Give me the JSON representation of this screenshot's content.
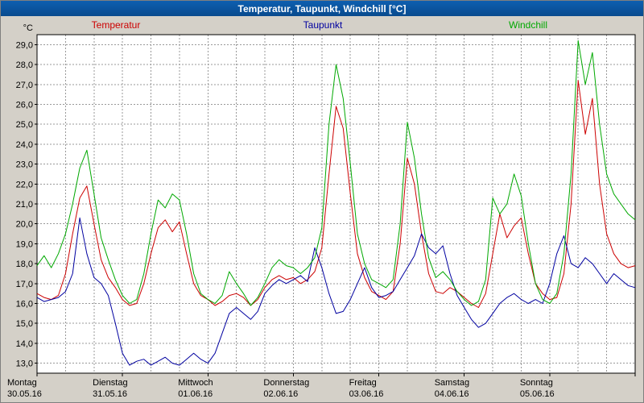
{
  "window": {
    "title": "Temperatur, Taupunkt, Windchill [°C]"
  },
  "chart_data": {
    "type": "line",
    "title": "Temperatur, Taupunkt, Windchill [°C]",
    "ylabel": "°C",
    "xlabel": "",
    "ylim": [
      12.5,
      29.5
    ],
    "y_ticks": [
      29,
      28,
      27,
      26,
      25,
      24,
      23,
      22,
      21,
      20,
      19,
      18,
      17,
      16,
      15,
      14,
      13
    ],
    "grid": {
      "horizontal_interval_deg": 1,
      "vertical_interval_hours": 8,
      "style": "dashed",
      "color": "#999999"
    },
    "legend_position": "top",
    "x_axis": {
      "hours_per_day": 24,
      "days": [
        {
          "name": "Montag",
          "date": "30.05.16"
        },
        {
          "name": "Dienstag",
          "date": "31.05.16"
        },
        {
          "name": "Mittwoch",
          "date": "01.06.16"
        },
        {
          "name": "Donnerstag",
          "date": "02.06.16"
        },
        {
          "name": "Freitag",
          "date": "03.06.16"
        },
        {
          "name": "Samstag",
          "date": "04.06.16"
        },
        {
          "name": "Sonntag",
          "date": "05.06.16"
        }
      ]
    },
    "x_step_hours": 2,
    "series": [
      {
        "name": "Temperatur",
        "color": "#cc0000",
        "values": [
          16.5,
          16.3,
          16.2,
          16.4,
          17.5,
          19.5,
          21.3,
          21.9,
          20.0,
          18.2,
          17.3,
          16.8,
          16.2,
          15.9,
          16.0,
          17.0,
          18.5,
          19.8,
          20.2,
          19.6,
          20.1,
          18.5,
          17.0,
          16.4,
          16.2,
          15.9,
          16.1,
          16.4,
          16.5,
          16.3,
          15.9,
          16.2,
          16.8,
          17.2,
          17.4,
          17.2,
          17.3,
          17.0,
          17.2,
          17.6,
          18.8,
          22.5,
          25.9,
          24.8,
          21.5,
          18.5,
          17.3,
          16.6,
          16.4,
          16.2,
          16.6,
          19.0,
          23.3,
          22.0,
          19.5,
          17.5,
          16.6,
          16.5,
          16.8,
          16.6,
          16.3,
          16.0,
          15.8,
          16.5,
          18.5,
          20.5,
          19.3,
          19.9,
          20.3,
          18.5,
          17.0,
          16.5,
          16.2,
          16.3,
          17.5,
          21.0,
          27.2,
          24.5,
          26.3,
          22.0,
          19.5,
          18.5,
          18.0,
          17.8,
          17.9
        ]
      },
      {
        "name": "Taupunkt",
        "color": "#0000a0",
        "values": [
          16.3,
          16.1,
          16.2,
          16.3,
          16.6,
          17.5,
          20.3,
          18.5,
          17.3,
          17.0,
          16.4,
          15.0,
          13.5,
          12.9,
          13.1,
          13.2,
          12.9,
          13.1,
          13.3,
          13.0,
          12.9,
          13.2,
          13.5,
          13.2,
          13.0,
          13.5,
          14.5,
          15.5,
          15.8,
          15.5,
          15.2,
          15.6,
          16.5,
          16.9,
          17.2,
          17.0,
          17.2,
          17.4,
          17.1,
          18.8,
          17.8,
          16.5,
          15.5,
          15.6,
          16.2,
          17.0,
          17.8,
          16.8,
          16.3,
          16.4,
          16.6,
          17.2,
          17.8,
          18.4,
          19.5,
          18.8,
          18.5,
          18.9,
          17.5,
          16.4,
          15.8,
          15.2,
          14.8,
          15.0,
          15.5,
          16.0,
          16.3,
          16.5,
          16.2,
          16.0,
          16.2,
          16.0,
          17.0,
          18.5,
          19.4,
          18.0,
          17.8,
          18.3,
          18.0,
          17.5,
          17.0,
          17.5,
          17.2,
          16.9,
          16.8
        ]
      },
      {
        "name": "Windchill",
        "color": "#00a800",
        "values": [
          17.9,
          18.4,
          17.8,
          18.5,
          19.5,
          21.0,
          22.8,
          23.7,
          21.5,
          19.3,
          18.2,
          17.2,
          16.4,
          16.0,
          16.2,
          17.5,
          19.5,
          21.2,
          20.8,
          21.5,
          21.2,
          19.5,
          17.5,
          16.5,
          16.2,
          16.0,
          16.4,
          17.6,
          17.0,
          16.5,
          15.9,
          16.3,
          17.0,
          17.8,
          18.2,
          17.9,
          17.8,
          17.5,
          17.8,
          18.3,
          19.8,
          25.0,
          28.0,
          26.3,
          23.0,
          19.5,
          18.0,
          17.2,
          17.0,
          16.8,
          17.2,
          20.0,
          25.1,
          23.3,
          20.5,
          18.3,
          17.3,
          17.6,
          17.2,
          16.6,
          16.2,
          15.9,
          16.1,
          17.2,
          21.3,
          20.5,
          21.0,
          22.5,
          21.4,
          19.0,
          17.0,
          16.2,
          16.0,
          16.5,
          18.5,
          22.5,
          29.2,
          27.0,
          28.6,
          25.0,
          22.5,
          21.5,
          21.0,
          20.5,
          20.2
        ]
      }
    ]
  }
}
